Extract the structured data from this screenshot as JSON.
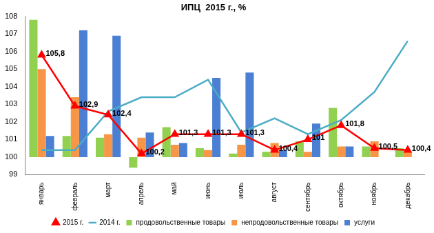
{
  "chart_data": {
    "type": "bar",
    "title": "ИПЦ  2015 г., %",
    "categories": [
      "январь",
      "февраль",
      "март",
      "апрель",
      "май",
      "июнь",
      "июль",
      "август",
      "сентябрь",
      "октябрь",
      "ноябрь",
      "декабрь"
    ],
    "base": 100,
    "ylim": [
      99,
      108
    ],
    "yticks": [
      99,
      100,
      101,
      102,
      103,
      104,
      105,
      106,
      107,
      108
    ],
    "grid": false,
    "legend": "bottom",
    "series": [
      {
        "name": "продовольственные товары",
        "type": "bar",
        "color": "#92d050",
        "values": [
          107.8,
          101.2,
          101.1,
          99.4,
          101.7,
          100.5,
          100.2,
          100.3,
          100.9,
          102.8,
          100.6,
          100.5
        ]
      },
      {
        "name": "непродовольственные товары",
        "type": "bar",
        "color": "#f79646",
        "values": [
          105.0,
          103.4,
          101.3,
          101.1,
          100.7,
          100.4,
          100.7,
          100.8,
          100.3,
          100.6,
          100.9,
          100.3
        ]
      },
      {
        "name": "услуги",
        "type": "bar",
        "color": "#4a7fd4",
        "values": [
          101.2,
          107.2,
          106.9,
          101.4,
          100.8,
          104.5,
          104.8,
          100.4,
          101.9,
          100.6,
          null,
          null
        ]
      },
      {
        "name": "2015 г.",
        "type": "line",
        "color": "#ff0000",
        "marker": "triangle",
        "line_style": "solid",
        "data_labels": true,
        "values": [
          105.8,
          102.9,
          102.4,
          100.2,
          101.3,
          101.3,
          101.3,
          100.4,
          101,
          101.8,
          100.5,
          100.4
        ],
        "value_labels": [
          "105,8",
          "102,9",
          "102,4",
          "100,2",
          "101,3",
          "101,3",
          "101,3",
          "100,4",
          "101",
          "101,8",
          "100,5",
          "100,4"
        ]
      },
      {
        "name": "2014 г.",
        "type": "line",
        "color": "#4bacc6",
        "marker": "none",
        "line_style": "solid",
        "values": [
          100.4,
          100.4,
          102.6,
          103.4,
          103.4,
          104.4,
          101.4,
          102.2,
          101.3,
          102.1,
          103.7,
          106.6
        ]
      }
    ]
  }
}
